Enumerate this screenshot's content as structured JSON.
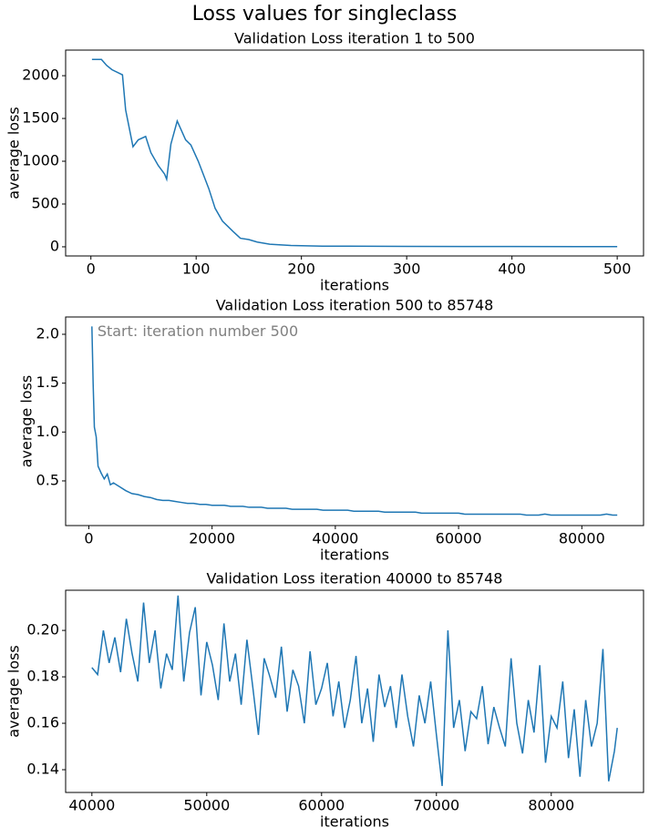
{
  "title": "Loss values for singleclass",
  "chart_data": [
    {
      "type": "line",
      "title": "Validation Loss iteration 1 to 500",
      "x_label": "iterations",
      "y_label": "average loss",
      "color": "#1f77b4",
      "xlim": [
        -24,
        525
      ],
      "ylim": [
        -107,
        2299
      ],
      "xticks": [
        0,
        100,
        200,
        300,
        400,
        500
      ],
      "yticks": [
        0,
        500,
        1000,
        1500,
        2000
      ],
      "x": [
        1,
        10,
        15,
        20,
        30,
        33,
        40,
        45,
        52,
        57,
        64,
        70,
        72,
        76,
        82,
        90,
        95,
        102,
        112,
        118,
        125,
        135,
        142,
        150,
        158,
        170,
        190,
        220,
        300,
        400,
        500
      ],
      "values": [
        2190,
        2190,
        2120,
        2070,
        2010,
        1600,
        1170,
        1250,
        1290,
        1100,
        950,
        850,
        790,
        1200,
        1470,
        1250,
        1190,
        1000,
        680,
        450,
        300,
        180,
        100,
        85,
        55,
        30,
        15,
        8,
        5,
        3,
        2
      ]
    },
    {
      "type": "line",
      "title": "Validation Loss iteration 500 to 85748",
      "x_label": "iterations",
      "y_label": "average loss",
      "color": "#1f77b4",
      "annotation": "Start: iteration number 500",
      "xlim": [
        -3762,
        90010
      ],
      "ylim": [
        0.043,
        2.177
      ],
      "xticks": [
        0,
        20000,
        40000,
        60000,
        80000
      ],
      "yticks": [
        {
          "value": 0.5,
          "label": "0.5"
        },
        {
          "value": 1,
          "label": "1.0"
        },
        {
          "value": 1.5,
          "label": "1.5"
        },
        {
          "value": 2,
          "label": "2.0"
        }
      ],
      "x": [
        500,
        700,
        900,
        1200,
        1500,
        2000,
        2500,
        3000,
        3500,
        4000,
        5000,
        6000,
        7000,
        8000,
        9000,
        10000,
        11000,
        12000,
        13000,
        14000,
        15000,
        16000,
        17000,
        18000,
        19000,
        20000,
        21000,
        22000,
        23000,
        24000,
        25000,
        26000,
        27000,
        28000,
        29000,
        30000,
        31000,
        32000,
        33000,
        34000,
        35000,
        36000,
        37000,
        38000,
        39000,
        40000,
        41000,
        42000,
        43000,
        44000,
        45000,
        46000,
        47000,
        48000,
        49000,
        50000,
        51000,
        52000,
        53000,
        54000,
        55000,
        56000,
        57000,
        58000,
        59000,
        60000,
        61000,
        62000,
        63000,
        64000,
        65000,
        66000,
        67000,
        68000,
        69000,
        70000,
        71000,
        72000,
        73000,
        74000,
        75000,
        76000,
        77000,
        78000,
        79000,
        80000,
        81000,
        82000,
        83000,
        84000,
        85000,
        85748
      ],
      "values": [
        2.08,
        1.5,
        1.05,
        0.95,
        0.65,
        0.58,
        0.52,
        0.57,
        0.46,
        0.48,
        0.44,
        0.4,
        0.37,
        0.36,
        0.34,
        0.33,
        0.31,
        0.3,
        0.3,
        0.29,
        0.28,
        0.27,
        0.27,
        0.26,
        0.26,
        0.25,
        0.25,
        0.25,
        0.24,
        0.24,
        0.24,
        0.23,
        0.23,
        0.23,
        0.22,
        0.22,
        0.22,
        0.22,
        0.21,
        0.21,
        0.21,
        0.21,
        0.21,
        0.2,
        0.2,
        0.2,
        0.2,
        0.2,
        0.19,
        0.19,
        0.19,
        0.19,
        0.19,
        0.18,
        0.18,
        0.18,
        0.18,
        0.18,
        0.18,
        0.17,
        0.17,
        0.17,
        0.17,
        0.17,
        0.17,
        0.17,
        0.16,
        0.16,
        0.16,
        0.16,
        0.16,
        0.16,
        0.16,
        0.16,
        0.16,
        0.16,
        0.15,
        0.15,
        0.15,
        0.16,
        0.15,
        0.15,
        0.15,
        0.15,
        0.15,
        0.15,
        0.15,
        0.15,
        0.15,
        0.16,
        0.15,
        0.15
      ]
    },
    {
      "type": "line",
      "title": "Validation Loss iteration 40000 to 85748",
      "x_label": "iterations",
      "y_label": "average loss",
      "color": "#1f77b4",
      "xlim": [
        37713,
        88035
      ],
      "ylim": [
        0.1302,
        0.2173
      ],
      "xticks": [
        40000,
        50000,
        60000,
        70000,
        80000
      ],
      "yticks": [
        0.14,
        0.16,
        0.18,
        {
          "value": 0.2,
          "label": "0.20"
        }
      ],
      "x": [
        40000,
        40500,
        41000,
        41500,
        42000,
        42500,
        43000,
        43500,
        44000,
        44500,
        45000,
        45500,
        46000,
        46500,
        47000,
        47500,
        48000,
        48500,
        49000,
        49500,
        50000,
        50500,
        51000,
        51500,
        52000,
        52500,
        53000,
        53500,
        54000,
        54500,
        55000,
        55500,
        56000,
        56500,
        57000,
        57500,
        58000,
        58500,
        59000,
        59500,
        60000,
        60500,
        61000,
        61500,
        62000,
        62500,
        63000,
        63500,
        64000,
        64500,
        65000,
        65500,
        66000,
        66500,
        67000,
        67500,
        68000,
        68500,
        69000,
        69500,
        70000,
        70500,
        71000,
        71500,
        72000,
        72500,
        73000,
        73500,
        74000,
        74500,
        75000,
        75500,
        76000,
        76500,
        77000,
        77500,
        78000,
        78500,
        79000,
        79500,
        80000,
        80500,
        81000,
        81500,
        82000,
        82500,
        83000,
        83500,
        84000,
        84500,
        85000,
        85500,
        85748
      ],
      "values": [
        0.184,
        0.181,
        0.2,
        0.186,
        0.197,
        0.182,
        0.205,
        0.19,
        0.178,
        0.212,
        0.186,
        0.2,
        0.175,
        0.19,
        0.183,
        0.215,
        0.178,
        0.199,
        0.21,
        0.172,
        0.195,
        0.185,
        0.17,
        0.203,
        0.178,
        0.19,
        0.168,
        0.196,
        0.176,
        0.155,
        0.188,
        0.18,
        0.171,
        0.193,
        0.165,
        0.183,
        0.176,
        0.16,
        0.191,
        0.168,
        0.175,
        0.186,
        0.163,
        0.178,
        0.158,
        0.17,
        0.189,
        0.16,
        0.175,
        0.152,
        0.181,
        0.167,
        0.176,
        0.158,
        0.181,
        0.163,
        0.15,
        0.172,
        0.16,
        0.178,
        0.155,
        0.133,
        0.2,
        0.158,
        0.17,
        0.148,
        0.165,
        0.162,
        0.176,
        0.151,
        0.167,
        0.158,
        0.15,
        0.188,
        0.16,
        0.147,
        0.17,
        0.156,
        0.185,
        0.143,
        0.163,
        0.158,
        0.178,
        0.145,
        0.166,
        0.137,
        0.17,
        0.15,
        0.16,
        0.192,
        0.135,
        0.148,
        0.158
      ]
    }
  ]
}
